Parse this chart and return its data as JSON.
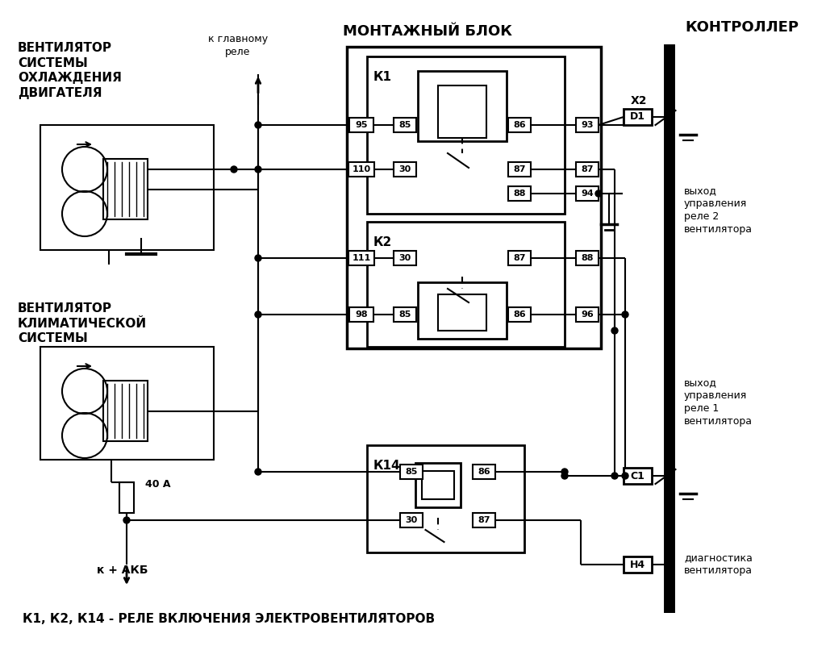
{
  "bg": "#ffffff",
  "title": "К1, К2, К14 - РЕЛЕ ВКЛЮЧЕНИЯ ЭЛЕКТРОВЕНТИЛЯТОРОВ",
  "label_fan1": "ВЕНТИЛЯТОР\nСИСТЕМЫ\nОХЛАЖДЕНИЯ\nДВИГАТЕЛЯ",
  "label_fan2": "ВЕНТИЛЯТОР\nКЛИМАТИЧЕСКОЙ\nСИСТЕМЫ",
  "label_block": "МОНТАЖНЫЙ БЛОК",
  "label_ctrl": "КОНТРОЛЛЕР",
  "label_glavnoe": "к главному\nреле",
  "label_akb": "к + АКБ",
  "label_40a": "40 А",
  "label_relay2": "выход\nуправления\nреле 2\nвентилятора",
  "label_relay1": "выход\nуправления\nреле 1\nвентилятора",
  "label_diag": "диагностика\nвентилятора",
  "label_x2": "Х2",
  "label_d1": "D1",
  "label_c1": "С1",
  "label_h4": "Н4",
  "label_k1": "К1",
  "label_k2": "К2",
  "label_k14": "К14"
}
